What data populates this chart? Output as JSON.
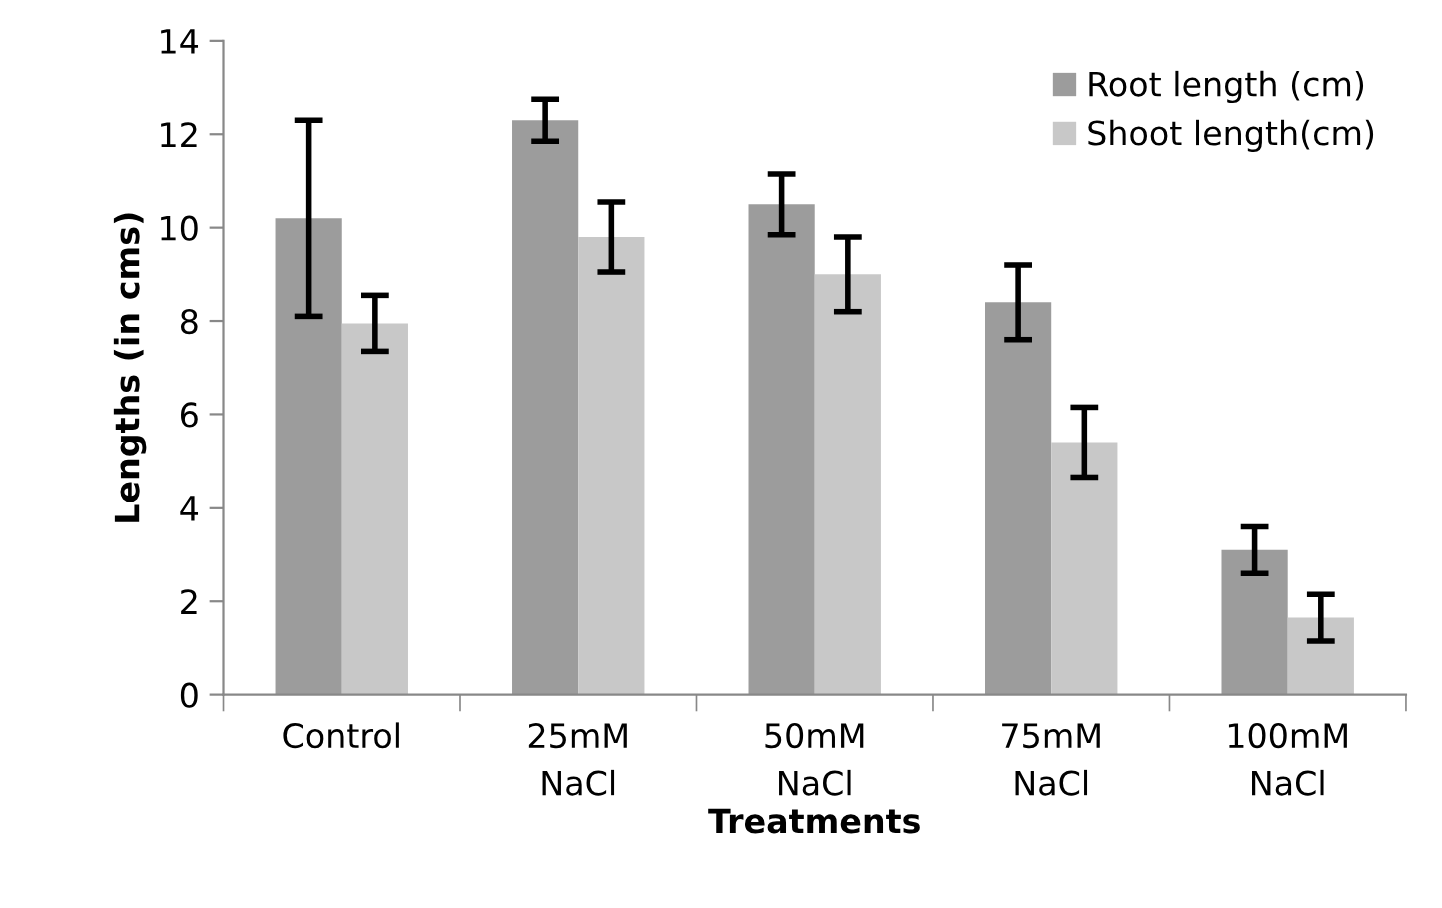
{
  "chart_data": {
    "type": "bar",
    "xlabel": "Treatments",
    "ylabel": "Lengths (in cms)",
    "categories": [
      "Control",
      "25mM\nNaCl",
      "50mM\nNaCl",
      "75mM\nNaCl",
      "100mM\nNaCl"
    ],
    "series": [
      {
        "name": "Root length (cm)",
        "color": "#9c9c9c",
        "values": [
          10.2,
          12.3,
          10.5,
          8.4,
          3.1
        ],
        "errors": [
          2.1,
          0.45,
          0.65,
          0.8,
          0.5
        ]
      },
      {
        "name": "Shoot length(cm)",
        "color": "#c8c8c8",
        "values": [
          7.95,
          9.8,
          9.0,
          5.4,
          1.65
        ],
        "errors": [
          0.6,
          0.75,
          0.8,
          0.75,
          0.5
        ]
      }
    ],
    "ylim": [
      0,
      14
    ],
    "yticks": [
      0,
      2,
      4,
      6,
      8,
      10,
      12,
      14
    ],
    "grid": false,
    "legend": "top right"
  }
}
